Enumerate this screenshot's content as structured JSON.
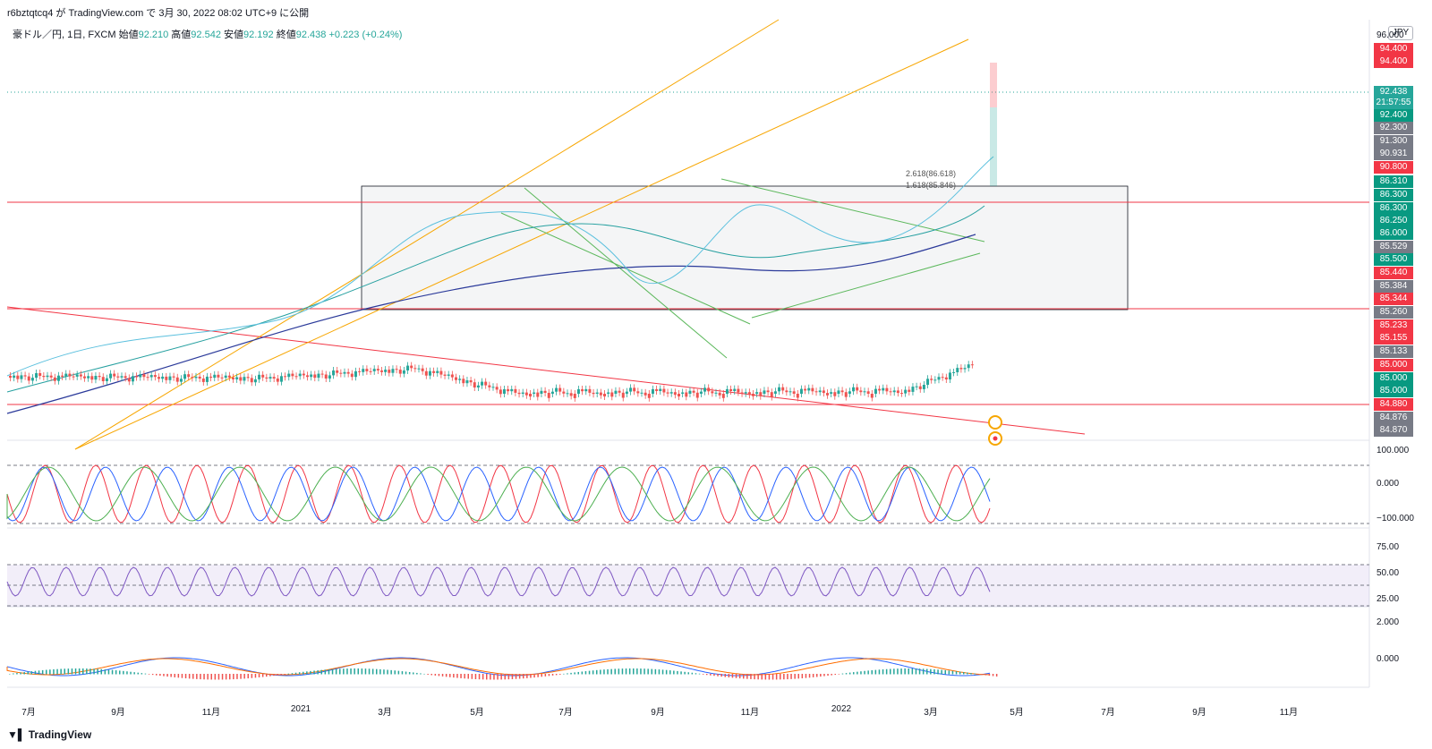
{
  "header": {
    "publish_text": "r6bztqtcq4 が TradingView.com で 3月 30, 2022 08:02 UTC+9 に公開"
  },
  "symbol": {
    "name": "豪ドル／円, 1日, FXCM",
    "open_label": "始値",
    "open": "92.210",
    "high_label": "高値",
    "high": "92.542",
    "low_label": "安値",
    "low": "92.192",
    "close_label": "終値",
    "close": "92.438",
    "change": "+0.223 (+0.24%)"
  },
  "currency": "JPY",
  "axis_top_tick": "96.000",
  "price_labels": [
    {
      "text": "94.400",
      "color": "#f23645"
    },
    {
      "text": "94.400",
      "color": "#f23645"
    },
    {
      "text": "92.438",
      "color": "#26a69a"
    },
    {
      "text": "21:57:55",
      "color": "#26a69a"
    },
    {
      "text": "92.400",
      "color": "#089981"
    },
    {
      "text": "92.300",
      "color": "#787b86"
    },
    {
      "text": "91.300",
      "color": "#787b86"
    },
    {
      "text": "90.931",
      "color": "#787b86"
    },
    {
      "text": "90.800",
      "color": "#f23645"
    },
    {
      "text": "86.310",
      "color": "#089981"
    },
    {
      "text": "86.300",
      "color": "#089981"
    },
    {
      "text": "86.300",
      "color": "#089981"
    },
    {
      "text": "86.250",
      "color": "#089981"
    },
    {
      "text": "86.000",
      "color": "#089981"
    },
    {
      "text": "85.529",
      "color": "#787b86"
    },
    {
      "text": "85.500",
      "color": "#089981"
    },
    {
      "text": "85.440",
      "color": "#f23645"
    },
    {
      "text": "85.384",
      "color": "#787b86"
    },
    {
      "text": "85.344",
      "color": "#f23645"
    },
    {
      "text": "85.260",
      "color": "#787b86"
    },
    {
      "text": "85.233",
      "color": "#f23645"
    },
    {
      "text": "85.155",
      "color": "#f23645"
    },
    {
      "text": "85.133",
      "color": "#787b86"
    },
    {
      "text": "85.000",
      "color": "#f23645"
    },
    {
      "text": "85.000",
      "color": "#089981"
    },
    {
      "text": "85.000",
      "color": "#089981"
    },
    {
      "text": "84.880",
      "color": "#f23645"
    },
    {
      "text": "84.876",
      "color": "#787b86"
    },
    {
      "text": "84.870",
      "color": "#787b86"
    }
  ],
  "fib_labels": [
    "2.618(86.618)",
    "1.618(85.846)"
  ],
  "indicator_labels": {
    "stoch": [
      "100.000",
      "0.000",
      "−100.000"
    ],
    "rsi": [
      "75.00",
      "50.00",
      "25.00"
    ],
    "macd": [
      "2.000",
      "0.000"
    ]
  },
  "months": [
    "7月",
    "9月",
    "11月",
    "2021",
    "3月",
    "5月",
    "7月",
    "9月",
    "11月",
    "2022",
    "3月",
    "5月",
    "7月",
    "9月",
    "11月"
  ],
  "footer": "TradingView",
  "colors": {
    "up": "#26a69a",
    "down": "#ef5350",
    "fib": "#f7a600",
    "support": "#f23645",
    "trend_green": "#5cb85c"
  }
}
